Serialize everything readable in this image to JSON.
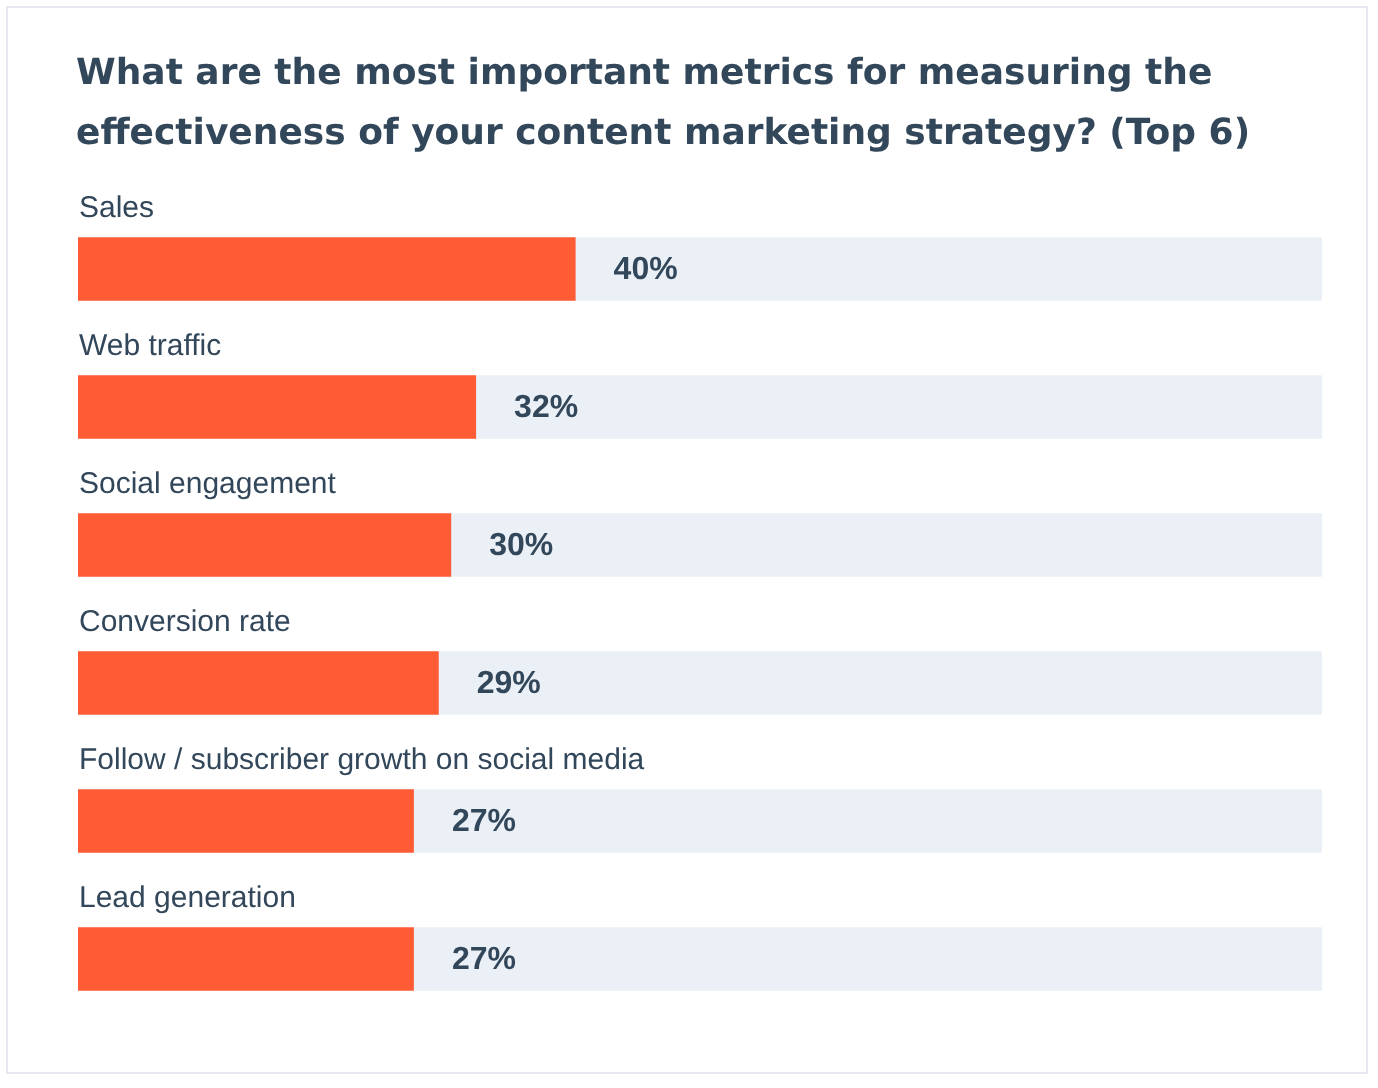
{
  "chart_data": {
    "type": "bar",
    "orientation": "horizontal",
    "title": "What are the most important metrics for measuring the effectiveness of your content marketing strategy? (Top 6)",
    "categories": [
      "Sales",
      "Web traffic",
      "Social engagement",
      "Conversion rate",
      "Follow / subscriber growth on social media",
      "Lead generation"
    ],
    "values": [
      40,
      32,
      30,
      29,
      27,
      27
    ],
    "color": "#ff5c35",
    "xlim": [
      0,
      100
    ],
    "tick_labels": "y",
    "value_labels": [
      "40%",
      "32%",
      "30%",
      "29%",
      "27%",
      "27%"
    ]
  }
}
